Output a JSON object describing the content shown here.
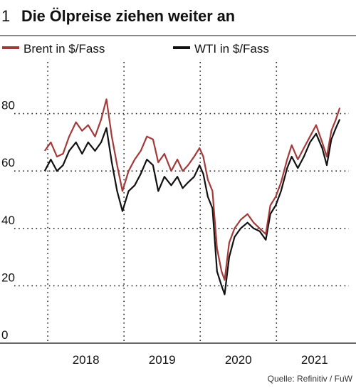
{
  "chart_data": {
    "type": "line",
    "number": "1",
    "title": "Die Ölpreise ziehen weiter an",
    "source": "Quelle: Refinitiv / FuW",
    "series": [
      {
        "name": "Brent in $/Fass",
        "color": "#a33a3a",
        "x": [
          2017.96,
          2018.04,
          2018.12,
          2018.2,
          2018.28,
          2018.37,
          2018.45,
          2018.53,
          2018.62,
          2018.7,
          2018.77,
          2018.84,
          2018.91,
          2018.98,
          2019.06,
          2019.14,
          2019.22,
          2019.3,
          2019.38,
          2019.45,
          2019.53,
          2019.62,
          2019.7,
          2019.77,
          2019.84,
          2019.92,
          2019.99,
          2020.04,
          2020.1,
          2020.16,
          2020.22,
          2020.28,
          2020.32,
          2020.38,
          2020.45,
          2020.53,
          2020.62,
          2020.7,
          2020.78,
          2020.86,
          2020.92,
          2020.99,
          2021.06,
          2021.14,
          2021.2,
          2021.28,
          2021.36,
          2021.44,
          2021.52,
          2021.6,
          2021.66,
          2021.72,
          2021.78,
          2021.83
        ],
        "values": [
          67,
          70,
          65,
          66,
          72,
          77,
          74,
          76,
          72,
          78,
          85,
          72,
          62,
          53,
          60,
          64,
          67,
          72,
          71,
          63,
          66,
          60,
          64,
          60,
          62,
          65,
          68,
          65,
          57,
          53,
          33,
          25,
          22,
          35,
          40,
          43,
          45,
          42,
          40,
          38,
          48,
          51,
          56,
          64,
          69,
          64,
          68,
          72,
          76,
          70,
          65,
          74,
          78,
          82
        ]
      },
      {
        "name": "WTI in $/Fass",
        "color": "#111111",
        "x": [
          2017.96,
          2018.04,
          2018.12,
          2018.2,
          2018.28,
          2018.37,
          2018.45,
          2018.53,
          2018.62,
          2018.7,
          2018.77,
          2018.84,
          2018.91,
          2018.98,
          2019.06,
          2019.14,
          2019.22,
          2019.3,
          2019.38,
          2019.45,
          2019.53,
          2019.62,
          2019.7,
          2019.77,
          2019.84,
          2019.92,
          2019.99,
          2020.04,
          2020.1,
          2020.16,
          2020.22,
          2020.28,
          2020.32,
          2020.38,
          2020.45,
          2020.53,
          2020.62,
          2020.7,
          2020.78,
          2020.86,
          2020.92,
          2020.99,
          2021.06,
          2021.14,
          2021.2,
          2021.28,
          2021.36,
          2021.44,
          2021.52,
          2021.6,
          2021.66,
          2021.72,
          2021.78,
          2021.83
        ],
        "values": [
          60,
          64,
          60,
          62,
          67,
          70,
          66,
          70,
          67,
          70,
          75,
          63,
          53,
          46,
          53,
          55,
          59,
          64,
          62,
          53,
          58,
          55,
          58,
          54,
          56,
          58,
          62,
          59,
          51,
          47,
          25,
          20,
          17,
          30,
          37,
          40,
          42,
          40,
          39,
          36,
          45,
          48,
          53,
          61,
          65,
          61,
          65,
          70,
          73,
          68,
          62,
          71,
          75,
          78
        ]
      }
    ],
    "xlim": [
      2017.56,
      2021.95
    ],
    "xticks": [
      {
        "value": 2018.5,
        "label": "2018"
      },
      {
        "value": 2019.5,
        "label": "2019"
      },
      {
        "value": 2020.5,
        "label": "2020"
      },
      {
        "value": 2021.5,
        "label": "2021"
      }
    ],
    "xgrid": [
      2018,
      2019,
      2020,
      2021
    ],
    "ylim": [
      0,
      98
    ],
    "yticks": [
      0,
      20,
      40,
      60,
      80
    ],
    "grid": true
  }
}
